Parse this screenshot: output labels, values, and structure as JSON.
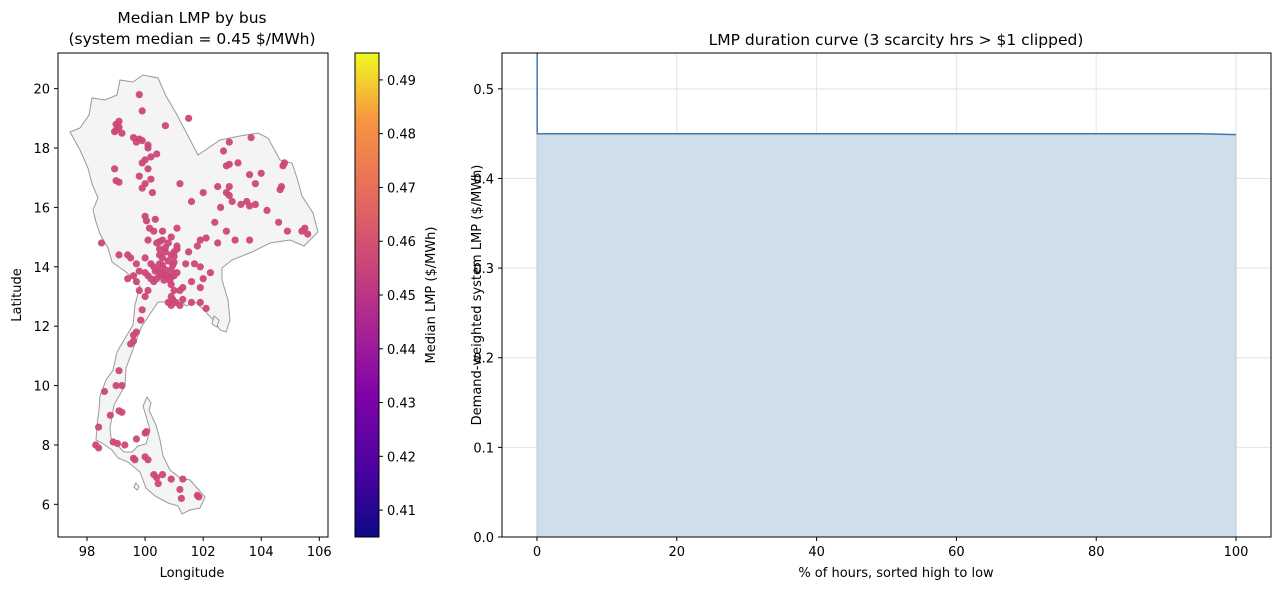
{
  "chart_data": [
    {
      "type": "scatter",
      "title_line1": "Median LMP by bus",
      "title_line2": "(system median = 0.45 $/MWh)",
      "xlabel": "Longitude",
      "ylabel": "Latitude",
      "xlim": [
        97.0,
        106.3
      ],
      "ylim": [
        4.9,
        21.2
      ],
      "xticks": [
        98,
        100,
        102,
        104,
        106
      ],
      "yticks": [
        6,
        8,
        10,
        12,
        14,
        16,
        18,
        20
      ],
      "point_color": "#cc4778",
      "map_fill": "#f4f4f4",
      "map_edge": "#999999",
      "colorbar": {
        "label": "Median LMP ($/MWh)",
        "range": [
          0.405,
          0.495
        ],
        "ticks": [
          0.41,
          0.42,
          0.43,
          0.44,
          0.45,
          0.46,
          0.47,
          0.48,
          0.49
        ],
        "colormap": "plasma"
      },
      "points": [
        [
          99.0,
          18.8
        ],
        [
          99.1,
          18.9
        ],
        [
          99.0,
          18.6
        ],
        [
          99.2,
          18.5
        ],
        [
          98.95,
          18.55
        ],
        [
          99.1,
          18.7
        ],
        [
          99.6,
          18.35
        ],
        [
          99.8,
          18.3
        ],
        [
          99.9,
          18.25
        ],
        [
          100.1,
          18.1
        ],
        [
          100.1,
          18.0
        ],
        [
          99.7,
          18.2
        ],
        [
          99.8,
          19.8
        ],
        [
          99.9,
          19.25
        ],
        [
          100.7,
          18.75
        ],
        [
          101.5,
          19.0
        ],
        [
          99.0,
          16.9
        ],
        [
          99.1,
          16.85
        ],
        [
          98.95,
          17.3
        ],
        [
          99.9,
          17.5
        ],
        [
          100.1,
          17.3
        ],
        [
          99.8,
          17.05
        ],
        [
          100.0,
          16.8
        ],
        [
          100.4,
          17.8
        ],
        [
          100.0,
          17.6
        ],
        [
          100.2,
          17.7
        ],
        [
          99.9,
          16.65
        ],
        [
          100.25,
          16.5
        ],
        [
          100.0,
          15.7
        ],
        [
          100.05,
          15.55
        ],
        [
          100.15,
          15.3
        ],
        [
          100.35,
          15.6
        ],
        [
          100.3,
          15.2
        ],
        [
          100.6,
          15.2
        ],
        [
          100.9,
          15.0
        ],
        [
          101.1,
          15.3
        ],
        [
          100.2,
          16.95
        ],
        [
          101.2,
          16.8
        ],
        [
          102.0,
          16.5
        ],
        [
          101.6,
          16.2
        ],
        [
          102.5,
          16.7
        ],
        [
          102.8,
          16.5
        ],
        [
          102.9,
          16.4
        ],
        [
          103.0,
          16.2
        ],
        [
          102.6,
          16.0
        ],
        [
          102.4,
          15.5
        ],
        [
          102.9,
          16.7
        ],
        [
          103.3,
          16.1
        ],
        [
          103.6,
          16.05
        ],
        [
          103.5,
          16.2
        ],
        [
          103.8,
          16.1
        ],
        [
          103.8,
          16.8
        ],
        [
          103.6,
          17.1
        ],
        [
          104.0,
          17.15
        ],
        [
          103.2,
          17.5
        ],
        [
          102.8,
          17.4
        ],
        [
          102.9,
          17.45
        ],
        [
          102.7,
          17.9
        ],
        [
          102.9,
          18.2
        ],
        [
          103.65,
          18.35
        ],
        [
          104.75,
          17.4
        ],
        [
          104.8,
          17.5
        ],
        [
          104.65,
          16.6
        ],
        [
          104.7,
          16.7
        ],
        [
          104.2,
          15.9
        ],
        [
          104.6,
          15.5
        ],
        [
          104.9,
          15.2
        ],
        [
          105.4,
          15.2
        ],
        [
          105.5,
          15.3
        ],
        [
          105.6,
          15.1
        ],
        [
          103.1,
          14.9
        ],
        [
          102.8,
          15.2
        ],
        [
          103.6,
          14.9
        ],
        [
          102.5,
          14.8
        ],
        [
          102.1,
          14.97
        ],
        [
          101.9,
          14.9
        ],
        [
          101.8,
          14.7
        ],
        [
          101.5,
          14.5
        ],
        [
          101.1,
          14.6
        ],
        [
          101.4,
          14.1
        ],
        [
          101.7,
          14.1
        ],
        [
          101.9,
          14.0
        ],
        [
          102.25,
          13.8
        ],
        [
          102.0,
          13.6
        ],
        [
          101.9,
          13.3
        ],
        [
          101.6,
          13.5
        ],
        [
          101.3,
          13.3
        ],
        [
          101.2,
          13.2
        ],
        [
          100.8,
          14.8
        ],
        [
          100.6,
          14.9
        ],
        [
          100.5,
          14.6
        ],
        [
          100.5,
          14.4
        ],
        [
          100.6,
          14.3
        ],
        [
          100.7,
          14.5
        ],
        [
          100.8,
          14.2
        ],
        [
          100.9,
          14.4
        ],
        [
          101.0,
          14.5
        ],
        [
          101.1,
          14.7
        ],
        [
          100.4,
          14.8
        ],
        [
          100.1,
          14.9
        ],
        [
          100.0,
          14.3
        ],
        [
          100.2,
          14.1
        ],
        [
          100.3,
          14.0
        ],
        [
          100.45,
          13.9
        ],
        [
          100.55,
          13.8
        ],
        [
          100.6,
          13.75
        ],
        [
          100.7,
          13.7
        ],
        [
          100.8,
          13.7
        ],
        [
          100.9,
          13.65
        ],
        [
          101.0,
          13.7
        ],
        [
          101.1,
          13.8
        ],
        [
          100.5,
          13.7
        ],
        [
          100.4,
          13.6
        ],
        [
          100.3,
          13.5
        ],
        [
          100.2,
          13.6
        ],
        [
          100.1,
          13.7
        ],
        [
          100.0,
          13.8
        ],
        [
          99.8,
          13.85
        ],
        [
          99.6,
          13.7
        ],
        [
          99.4,
          13.6
        ],
        [
          99.7,
          13.5
        ],
        [
          99.8,
          13.2
        ],
        [
          100.1,
          13.2
        ],
        [
          100.0,
          13.0
        ],
        [
          100.9,
          13.4
        ],
        [
          101.0,
          13.2
        ],
        [
          100.9,
          13.0
        ],
        [
          100.95,
          12.9
        ],
        [
          101.05,
          12.8
        ],
        [
          101.2,
          12.7
        ],
        [
          100.9,
          12.7
        ],
        [
          100.8,
          12.8
        ],
        [
          101.3,
          12.9
        ],
        [
          101.6,
          12.8
        ],
        [
          101.9,
          12.8
        ],
        [
          102.1,
          12.6
        ],
        [
          100.9,
          13.9
        ],
        [
          100.95,
          14.05
        ],
        [
          101.0,
          14.15
        ],
        [
          100.6,
          14.05
        ],
        [
          100.7,
          13.9
        ],
        [
          100.5,
          14.1
        ],
        [
          99.4,
          14.4
        ],
        [
          99.5,
          14.3
        ],
        [
          99.7,
          14.1
        ],
        [
          99.1,
          14.4
        ],
        [
          98.5,
          14.8
        ],
        [
          99.9,
          12.55
        ],
        [
          99.85,
          12.2
        ],
        [
          99.7,
          11.8
        ],
        [
          99.6,
          11.5
        ],
        [
          99.6,
          11.7
        ],
        [
          99.5,
          11.4
        ],
        [
          99.1,
          10.5
        ],
        [
          99.0,
          10.0
        ],
        [
          99.2,
          10.0
        ],
        [
          98.6,
          9.8
        ],
        [
          99.1,
          9.15
        ],
        [
          99.2,
          9.1
        ],
        [
          98.8,
          9.0
        ],
        [
          98.4,
          8.6
        ],
        [
          98.3,
          8.0
        ],
        [
          98.4,
          7.9
        ],
        [
          98.9,
          8.1
        ],
        [
          99.05,
          8.05
        ],
        [
          99.3,
          8.0
        ],
        [
          99.6,
          7.55
        ],
        [
          99.65,
          7.5
        ],
        [
          99.7,
          8.2
        ],
        [
          100.0,
          8.4
        ],
        [
          100.05,
          8.45
        ],
        [
          100.0,
          7.6
        ],
        [
          100.1,
          7.5
        ],
        [
          100.3,
          7.0
        ],
        [
          100.4,
          6.9
        ],
        [
          100.45,
          6.7
        ],
        [
          100.6,
          7.0
        ],
        [
          100.9,
          6.85
        ],
        [
          101.3,
          6.85
        ],
        [
          101.2,
          6.5
        ],
        [
          101.25,
          6.2
        ],
        [
          101.8,
          6.3
        ],
        [
          101.85,
          6.25
        ],
        [
          100.5,
          14.85
        ],
        [
          100.7,
          14.65
        ],
        [
          101.0,
          14.35
        ],
        [
          100.35,
          13.85
        ],
        [
          100.65,
          13.55
        ],
        [
          100.85,
          13.55
        ]
      ]
    },
    {
      "type": "area",
      "title": "LMP duration curve  (3 scarcity hrs > $1 clipped)",
      "xlabel": "% of hours, sorted high to low",
      "ylabel": "Demand-weighted system LMP ($/MWh)",
      "xlim": [
        -5,
        105
      ],
      "ylim": [
        0.0,
        0.54
      ],
      "xticks": [
        0,
        20,
        40,
        60,
        80,
        100
      ],
      "yticks": [
        0.0,
        0.1,
        0.2,
        0.3,
        0.4,
        0.5
      ],
      "grid": true,
      "line_color": "#3b7ab0",
      "fill_color": "#cfdeea",
      "x": [
        0,
        0.03,
        0.04,
        20,
        40,
        60,
        80,
        95,
        100
      ],
      "y": [
        0.54,
        0.54,
        0.45,
        0.45,
        0.45,
        0.45,
        0.45,
        0.45,
        0.449
      ]
    }
  ]
}
